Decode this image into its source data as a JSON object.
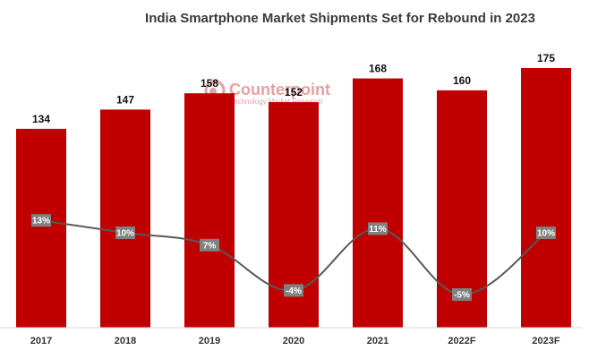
{
  "chart_data": {
    "type": "bar",
    "title": "India Smartphone Market Shipments Set for Rebound in 2023",
    "categories": [
      "2017",
      "2018",
      "2019",
      "2020",
      "2021",
      "2022F",
      "2023F"
    ],
    "series": [
      {
        "values": [
          134,
          147,
          158,
          152,
          168,
          160,
          175
        ]
      },
      {
        "values": [
          13,
          10,
          7,
          -4,
          11,
          -5,
          10
        ]
      }
    ],
    "growth_labels": [
      "13%",
      "10%",
      "7%",
      "-4%",
      "11%",
      "-5%",
      "10%"
    ],
    "colors": {
      "bar": "#c00000",
      "line": "#595959",
      "growth_badge": "#808080"
    },
    "grid": false,
    "legend": "none"
  },
  "watermark": {
    "name": "Counterpoint",
    "tagline": "Technology Market Research",
    "color": "#e8a0a0",
    "icon": "counterpoint-logo-icon"
  }
}
